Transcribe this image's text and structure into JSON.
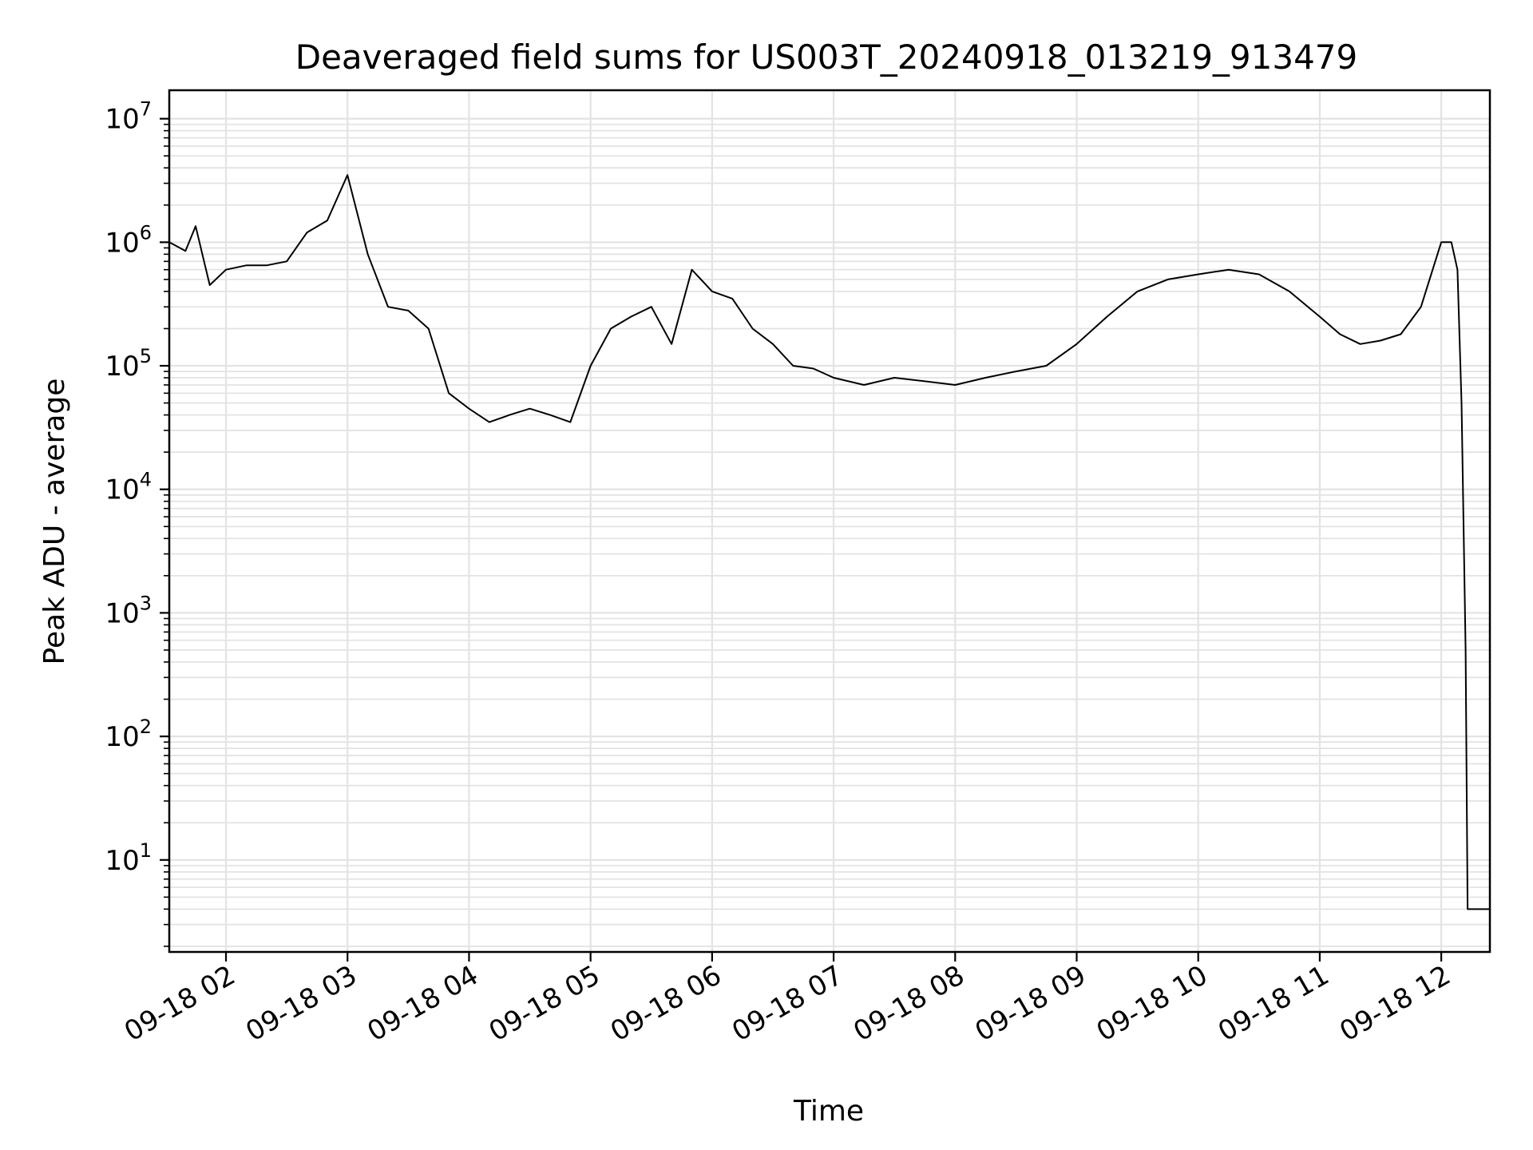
{
  "chart_data": {
    "type": "line",
    "title": "Deaveraged field sums for US003T_20240918_013219_913479",
    "xlabel": "Time",
    "ylabel": "Peak ADU - average",
    "yscale": "log",
    "ylim": [
      1.8,
      17000000
    ],
    "xlim": [
      "2024-09-18 01:32",
      "2024-09-18 12:24"
    ],
    "grid": true,
    "line_color": "#000000",
    "grid_color": "#e3e3e3",
    "x_ticks": [
      {
        "value": "2024-09-18 02:00",
        "label": "09-18 02"
      },
      {
        "value": "2024-09-18 03:00",
        "label": "09-18 03"
      },
      {
        "value": "2024-09-18 04:00",
        "label": "09-18 04"
      },
      {
        "value": "2024-09-18 05:00",
        "label": "09-18 05"
      },
      {
        "value": "2024-09-18 06:00",
        "label": "09-18 06"
      },
      {
        "value": "2024-09-18 07:00",
        "label": "09-18 07"
      },
      {
        "value": "2024-09-18 08:00",
        "label": "09-18 08"
      },
      {
        "value": "2024-09-18 09:00",
        "label": "09-18 09"
      },
      {
        "value": "2024-09-18 10:00",
        "label": "09-18 10"
      },
      {
        "value": "2024-09-18 11:00",
        "label": "09-18 11"
      },
      {
        "value": "2024-09-18 12:00",
        "label": "09-18 12"
      }
    ],
    "y_ticks": [
      {
        "value": 10,
        "base": "10",
        "exp": "1"
      },
      {
        "value": 100,
        "base": "10",
        "exp": "2"
      },
      {
        "value": 1000,
        "base": "10",
        "exp": "3"
      },
      {
        "value": 10000,
        "base": "10",
        "exp": "4"
      },
      {
        "value": 100000,
        "base": "10",
        "exp": "5"
      },
      {
        "value": 1000000,
        "base": "10",
        "exp": "6"
      },
      {
        "value": 10000000,
        "base": "10",
        "exp": "7"
      }
    ],
    "series": [
      {
        "x": [
          "2024-09-18 01:32",
          "2024-09-18 01:40",
          "2024-09-18 01:45",
          "2024-09-18 01:52",
          "2024-09-18 02:00",
          "2024-09-18 02:10",
          "2024-09-18 02:20",
          "2024-09-18 02:30",
          "2024-09-18 02:40",
          "2024-09-18 02:50",
          "2024-09-18 03:00",
          "2024-09-18 03:10",
          "2024-09-18 03:20",
          "2024-09-18 03:30",
          "2024-09-18 03:40",
          "2024-09-18 03:50",
          "2024-09-18 04:00",
          "2024-09-18 04:10",
          "2024-09-18 04:20",
          "2024-09-18 04:30",
          "2024-09-18 04:40",
          "2024-09-18 04:50",
          "2024-09-18 05:00",
          "2024-09-18 05:10",
          "2024-09-18 05:20",
          "2024-09-18 05:30",
          "2024-09-18 05:40",
          "2024-09-18 05:50",
          "2024-09-18 06:00",
          "2024-09-18 06:10",
          "2024-09-18 06:20",
          "2024-09-18 06:30",
          "2024-09-18 06:40",
          "2024-09-18 06:50",
          "2024-09-18 07:00",
          "2024-09-18 07:15",
          "2024-09-18 07:30",
          "2024-09-18 07:45",
          "2024-09-18 08:00",
          "2024-09-18 08:15",
          "2024-09-18 08:30",
          "2024-09-18 08:45",
          "2024-09-18 09:00",
          "2024-09-18 09:15",
          "2024-09-18 09:30",
          "2024-09-18 09:45",
          "2024-09-18 10:00",
          "2024-09-18 10:15",
          "2024-09-18 10:30",
          "2024-09-18 10:45",
          "2024-09-18 11:00",
          "2024-09-18 11:10",
          "2024-09-18 11:20",
          "2024-09-18 11:30",
          "2024-09-18 11:40",
          "2024-09-18 11:50",
          "2024-09-18 12:00",
          "2024-09-18 12:05",
          "2024-09-18 12:08",
          "2024-09-18 12:10",
          "2024-09-18 12:12",
          "2024-09-18 12:13",
          "2024-09-18 12:15",
          "2024-09-18 12:20",
          "2024-09-18 12:24"
        ],
        "y": [
          1000000,
          850000,
          1350000,
          450000,
          600000,
          650000,
          650000,
          700000,
          1200000,
          1500000,
          3500000,
          800000,
          300000,
          280000,
          200000,
          60000,
          45000,
          35000,
          40000,
          45000,
          40000,
          35000,
          100000,
          200000,
          250000,
          300000,
          150000,
          600000,
          400000,
          350000,
          200000,
          150000,
          100000,
          95000,
          80000,
          70000,
          80000,
          75000,
          70000,
          80000,
          90000,
          100000,
          150000,
          250000,
          400000,
          500000,
          550000,
          600000,
          550000,
          400000,
          250000,
          180000,
          150000,
          160000,
          180000,
          300000,
          1000000,
          1000000,
          600000,
          50000,
          500,
          4,
          4,
          4,
          4
        ]
      }
    ]
  }
}
